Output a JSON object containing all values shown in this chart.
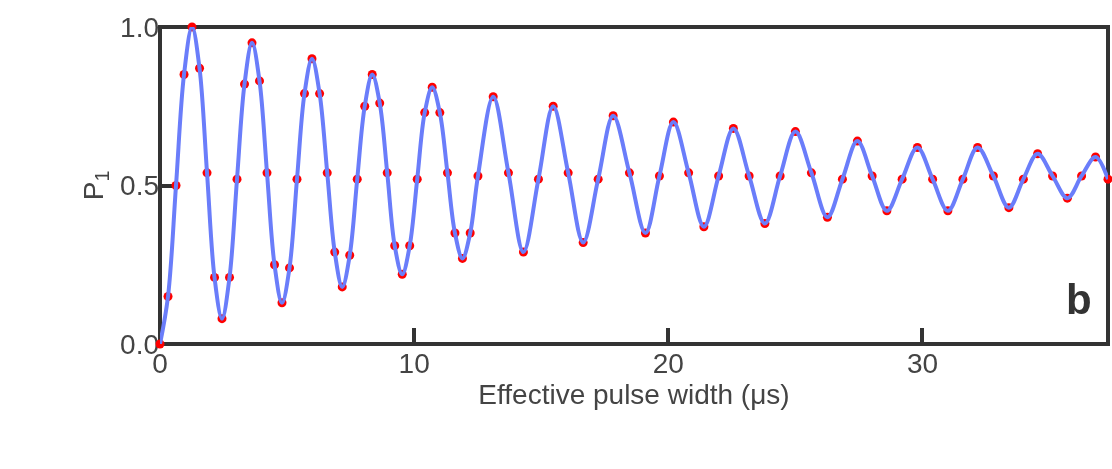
{
  "chart_data": {
    "type": "scatter",
    "xlabel": "Effective pulse width (μs)",
    "ylabel": "P$_{1}$",
    "annotations": [
      "b"
    ],
    "xlim": [
      0,
      37.3
    ],
    "xticks": [
      0,
      10,
      20,
      30
    ],
    "ylim": [
      0,
      1
    ],
    "yticks": [
      {
        "value": 0,
        "label": "0.0"
      },
      {
        "value": 0.5,
        "label": "0.5"
      },
      {
        "value": 1,
        "label": "1.0"
      }
    ],
    "grid": false,
    "x": [
      0,
      0.315,
      0.63,
      0.945,
      1.26,
      1.555,
      1.85,
      2.145,
      2.44,
      2.735,
      3.03,
      3.325,
      3.62,
      3.915,
      4.21,
      4.505,
      4.8,
      5.095,
      5.39,
      5.685,
      5.98,
      6.28,
      6.58,
      6.875,
      7.17,
      7.465,
      7.76,
      8.055,
      8.35,
      8.645,
      8.94,
      9.235,
      9.53,
      9.825,
      10.12,
      10.415,
      10.71,
      11.01,
      11.31,
      11.605,
      11.9,
      12.205,
      12.51,
      13.11,
      13.71,
      14.3,
      14.89,
      15.47,
      16.06,
      16.65,
      17.24,
      17.83,
      18.47,
      19.1,
      19.65,
      20.2,
      20.8,
      21.4,
      21.98,
      22.56,
      23.18,
      23.8,
      24.4,
      25.0,
      25.63,
      26.26,
      26.85,
      27.44,
      28.02,
      28.6,
      29.2,
      29.8,
      30.4,
      31.0,
      31.59,
      32.17,
      32.79,
      33.4,
      33.97,
      34.53,
      35.12,
      35.7,
      36.26,
      36.81,
      37.3
    ],
    "series": [
      {
        "type": "scatter",
        "marker": "circle",
        "color": "#ff0000",
        "values": [
          0,
          0.15,
          0.5,
          0.85,
          1.0,
          0.87,
          0.54,
          0.21,
          0.08,
          0.21,
          0.52,
          0.82,
          0.95,
          0.83,
          0.54,
          0.25,
          0.13,
          0.24,
          0.52,
          0.79,
          0.9,
          0.79,
          0.54,
          0.29,
          0.18,
          0.28,
          0.52,
          0.75,
          0.85,
          0.76,
          0.54,
          0.31,
          0.22,
          0.31,
          0.52,
          0.73,
          0.81,
          0.73,
          0.54,
          0.35,
          0.27,
          0.35,
          0.53,
          0.78,
          0.54,
          0.29,
          0.52,
          0.75,
          0.54,
          0.32,
          0.52,
          0.72,
          0.54,
          0.35,
          0.53,
          0.7,
          0.54,
          0.37,
          0.53,
          0.68,
          0.53,
          0.38,
          0.53,
          0.67,
          0.54,
          0.4,
          0.52,
          0.64,
          0.53,
          0.42,
          0.52,
          0.62,
          0.52,
          0.42,
          0.52,
          0.62,
          0.53,
          0.43,
          0.52,
          0.6,
          0.53,
          0.46,
          0.53,
          0.59,
          0.52
        ]
      },
      {
        "type": "line",
        "marker": "none",
        "line_style": "solid",
        "color": "#6a7dfa",
        "values": [
          0,
          0.15,
          0.5,
          0.85,
          1.0,
          0.87,
          0.54,
          0.21,
          0.08,
          0.21,
          0.52,
          0.82,
          0.95,
          0.83,
          0.54,
          0.25,
          0.13,
          0.24,
          0.52,
          0.79,
          0.9,
          0.79,
          0.54,
          0.29,
          0.18,
          0.28,
          0.52,
          0.75,
          0.85,
          0.76,
          0.54,
          0.31,
          0.22,
          0.31,
          0.52,
          0.73,
          0.81,
          0.73,
          0.54,
          0.35,
          0.27,
          0.35,
          0.53,
          0.78,
          0.54,
          0.29,
          0.52,
          0.75,
          0.54,
          0.32,
          0.52,
          0.72,
          0.54,
          0.35,
          0.53,
          0.7,
          0.54,
          0.37,
          0.53,
          0.68,
          0.53,
          0.38,
          0.53,
          0.67,
          0.54,
          0.4,
          0.52,
          0.64,
          0.53,
          0.42,
          0.52,
          0.62,
          0.52,
          0.42,
          0.52,
          0.62,
          0.53,
          0.43,
          0.52,
          0.6,
          0.53,
          0.46,
          0.53,
          0.59,
          0.52
        ]
      }
    ]
  }
}
